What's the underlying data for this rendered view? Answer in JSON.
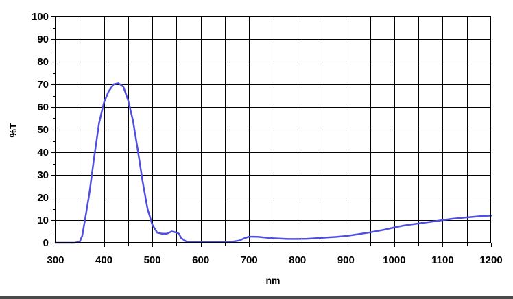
{
  "chart_data": {
    "type": "line",
    "title": "",
    "xlabel": "nm",
    "ylabel": "%T",
    "xlim": [
      300,
      1200
    ],
    "ylim": [
      0,
      100
    ],
    "x_ticks": [
      300,
      400,
      500,
      600,
      700,
      800,
      900,
      1000,
      1100,
      1200
    ],
    "y_ticks": [
      0,
      10,
      20,
      30,
      40,
      50,
      60,
      70,
      80,
      90,
      100
    ],
    "grid": true,
    "line_color": "#5050e0",
    "series": [
      {
        "x": [
          300,
          340,
          350,
          355,
          360,
          370,
          380,
          390,
          400,
          410,
          420,
          430,
          440,
          450,
          460,
          470,
          480,
          490,
          500,
          510,
          520,
          530,
          540,
          550,
          555,
          560,
          570,
          580,
          590,
          600,
          620,
          640,
          660,
          680,
          690,
          700,
          710,
          720,
          730,
          750,
          780,
          800,
          820,
          850,
          880,
          900,
          920,
          950,
          980,
          1000,
          1020,
          1050,
          1080,
          1100,
          1120,
          1150,
          1180,
          1200
        ],
        "y": [
          0,
          0,
          0.5,
          3,
          9,
          22,
          38,
          53,
          62,
          67,
          70,
          70.5,
          69,
          63,
          54,
          41,
          27,
          15,
          8,
          4.5,
          4,
          4,
          5,
          4.5,
          4,
          2,
          0.6,
          0.2,
          0.2,
          0.2,
          0.2,
          0.2,
          0.3,
          1,
          2,
          2.7,
          2.7,
          2.6,
          2.4,
          2,
          1.7,
          1.7,
          1.8,
          2.2,
          2.6,
          3,
          3.6,
          4.6,
          5.8,
          6.8,
          7.6,
          8.5,
          9.4,
          10,
          10.6,
          11.2,
          11.8,
          12
        ]
      }
    ]
  }
}
